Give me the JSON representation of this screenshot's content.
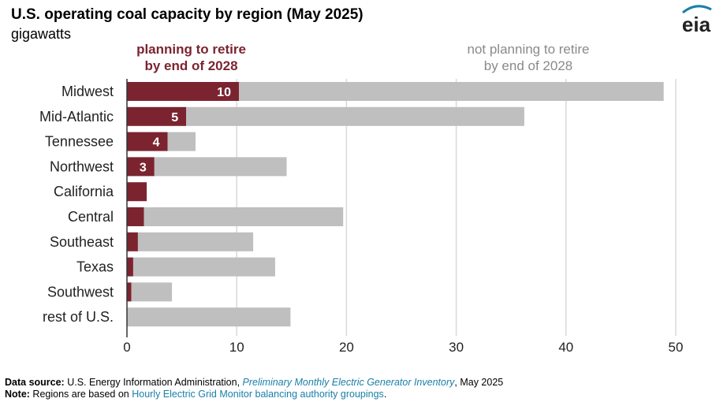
{
  "header": {
    "title": "U.S. operating coal capacity by region (May 2025)",
    "subtitle": "gigawatts",
    "logo": "eia"
  },
  "colors": {
    "retire": "#7b2430",
    "not_retire": "#bfbfbf",
    "grid": "#d9d9d9",
    "link": "#1a7fa8"
  },
  "chart_data": {
    "type": "bar",
    "orientation": "horizontal",
    "stacked": true,
    "title": "U.S. operating coal capacity by region (May 2025)",
    "unit": "gigawatts",
    "categories": [
      "Midwest",
      "Mid-Atlantic",
      "Tennessee",
      "Northwest",
      "California",
      "Central",
      "Southeast",
      "Texas",
      "Southwest",
      "rest of U.S."
    ],
    "series": [
      {
        "name": "planning to retire by end of 2028",
        "values": [
          10.2,
          5.4,
          3.7,
          2.5,
          1.8,
          1.55,
          1.0,
          0.57,
          0.4,
          0
        ]
      },
      {
        "name": "not planning to retire by end of 2028",
        "values": [
          38.7,
          30.8,
          2.55,
          12.05,
          0,
          18.15,
          10.5,
          12.93,
          3.7,
          14.9
        ]
      }
    ],
    "data_labels": [
      "10",
      "5",
      "4",
      "3",
      "",
      "",
      "",
      "",
      "",
      ""
    ],
    "xlim": [
      0,
      50
    ],
    "xticks": [
      "0",
      "10",
      "20",
      "30",
      "40",
      "50"
    ],
    "grid": "vertical",
    "legend": {
      "placement": "top",
      "retire_lines": [
        "planning to retire",
        "by end of 2028"
      ],
      "not_retire_lines": [
        "not planning to retire",
        "by end of 2028"
      ]
    }
  },
  "footer": {
    "source_label": "Data source:",
    "source_text": " U.S. Energy Information Administration, ",
    "source_link": "Preliminary Monthly Electric Generator Inventory",
    "source_tail": ", May 2025",
    "note_label": "Note:",
    "note_text": " Regions are based on ",
    "note_link": "Hourly Electric Grid Monitor balancing authority groupings",
    "note_tail": "."
  }
}
